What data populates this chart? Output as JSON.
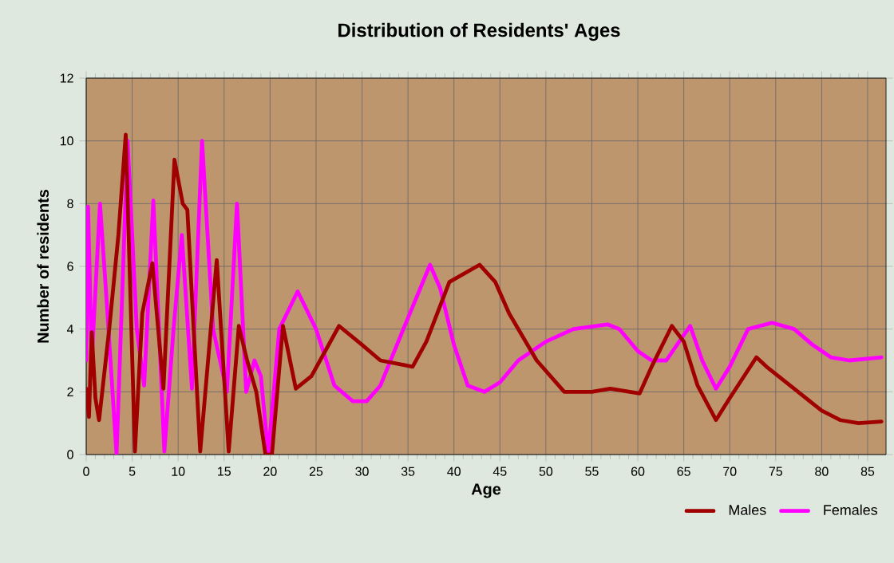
{
  "chart_data": {
    "type": "line",
    "title": "Distribution of Residents' Ages",
    "xlabel": "Age",
    "ylabel": "Number of residents",
    "xlim": [
      0,
      87
    ],
    "ylim": [
      0,
      12
    ],
    "xticks": [
      0,
      5,
      10,
      15,
      20,
      25,
      30,
      35,
      40,
      45,
      50,
      55,
      60,
      65,
      70,
      75,
      80,
      85
    ],
    "yticks": [
      0,
      2,
      4,
      6,
      8,
      10,
      12
    ],
    "grid": true,
    "legend": "bottom right",
    "marker": "none",
    "line_style": "solid",
    "series": [
      {
        "name": "Males",
        "color": "#a00000",
        "x": [
          0,
          0.3,
          0.6,
          1,
          1.4,
          2.5,
          3.5,
          4.3,
          5.3,
          6.1,
          7.2,
          8.4,
          9.6,
          10.5,
          11,
          12.4,
          14.2,
          15.5,
          16.6,
          17.5,
          18.5,
          19.5,
          20.2,
          21.4,
          22.8,
          24.5,
          27.5,
          30,
          32,
          35.5,
          37,
          39.5,
          42.8,
          44.5,
          46,
          49,
          52,
          55,
          57,
          60.2,
          61.5,
          63.7,
          65,
          66.5,
          68.5,
          70,
          72.9,
          74,
          77,
          80,
          82,
          84,
          86.5
        ],
        "values": [
          2.1,
          1.2,
          3.9,
          1.8,
          1.1,
          4,
          7,
          10.2,
          0.1,
          4.5,
          6.1,
          2.1,
          9.4,
          8,
          7.8,
          0.1,
          6.2,
          0.1,
          4.1,
          3,
          2,
          0,
          0,
          4.1,
          2.1,
          2.5,
          4.1,
          3.5,
          3,
          2.8,
          3.6,
          5.5,
          6.05,
          5.5,
          4.5,
          3,
          2,
          2,
          2.1,
          1.95,
          2.8,
          4.1,
          3.6,
          2.2,
          1.1,
          1.8,
          3.1,
          2.8,
          2.1,
          1.4,
          1.1,
          1,
          1.05
        ]
      },
      {
        "name": "Females",
        "color": "#ff00ff",
        "x": [
          0,
          0.2,
          0.6,
          1.5,
          2.2,
          3.3,
          4.5,
          5.5,
          6.3,
          7.3,
          8.5,
          9.5,
          10.4,
          11.5,
          12.6,
          13.8,
          15.3,
          16.4,
          17.4,
          18.3,
          19,
          19.8,
          21,
          23,
          25,
          27,
          29,
          30.5,
          32,
          34.5,
          37.4,
          38.5,
          40,
          41.5,
          43.3,
          45,
          47,
          50,
          53,
          56.7,
          58,
          60,
          61.5,
          63.1,
          64.5,
          65.7,
          67,
          68.5,
          70,
          72,
          74.6,
          77,
          79,
          81,
          83,
          86.5
        ],
        "values": [
          3,
          7.9,
          3,
          8,
          5,
          0,
          10,
          4,
          2.2,
          8.1,
          0.1,
          4,
          7,
          2.1,
          10,
          4,
          2,
          8,
          2,
          3,
          2.5,
          0,
          4,
          5.2,
          4,
          2.2,
          1.7,
          1.7,
          2.2,
          4,
          6.05,
          5.3,
          3.5,
          2.2,
          2,
          2.3,
          3,
          3.6,
          4,
          4.15,
          4,
          3.3,
          3,
          3,
          3.6,
          4.1,
          3,
          2.1,
          2.8,
          4,
          4.2,
          4,
          3.5,
          3.1,
          3,
          3.1
        ]
      }
    ]
  }
}
